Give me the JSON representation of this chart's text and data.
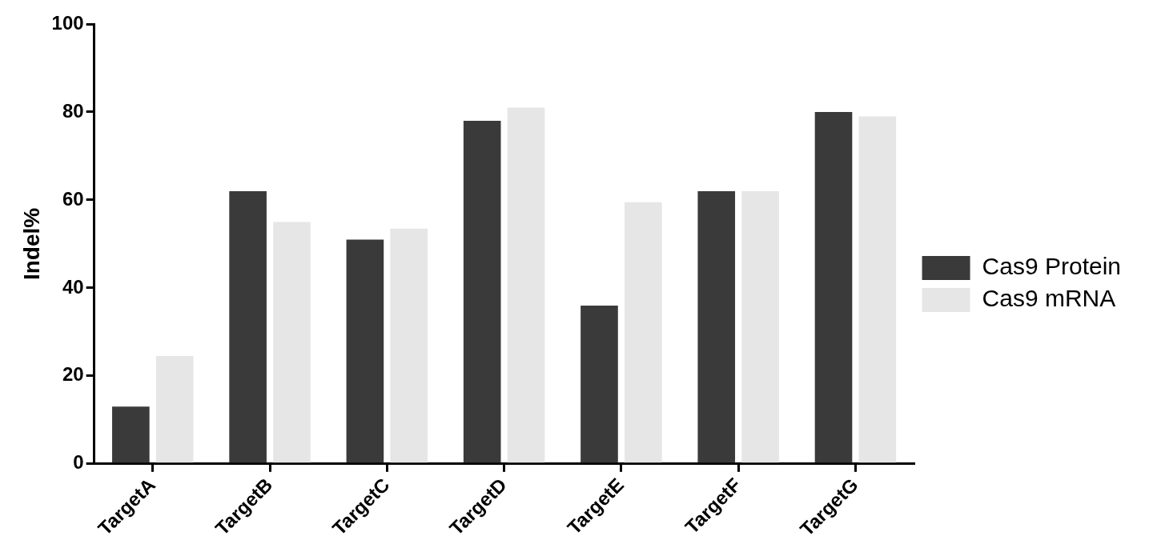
{
  "chart_data": {
    "type": "bar",
    "ylabel": "Indel%",
    "categories": [
      "TargetA",
      "TargetB",
      "TargetC",
      "TargetD",
      "TargetE",
      "TargetF",
      "TargetG"
    ],
    "series": [
      {
        "name": "Cas9 Protein",
        "color": "#3a3a3a",
        "values": [
          13,
          62,
          51,
          78,
          36,
          62,
          80
        ]
      },
      {
        "name": "Cas9 mRNA",
        "color": "#e6e6e6",
        "values": [
          24.5,
          55,
          53.5,
          81,
          59.5,
          62,
          79
        ]
      }
    ],
    "ylim": [
      0,
      100
    ],
    "yticks": [
      0,
      20,
      40,
      60,
      80,
      100
    ],
    "grid": false,
    "legend": "right"
  }
}
